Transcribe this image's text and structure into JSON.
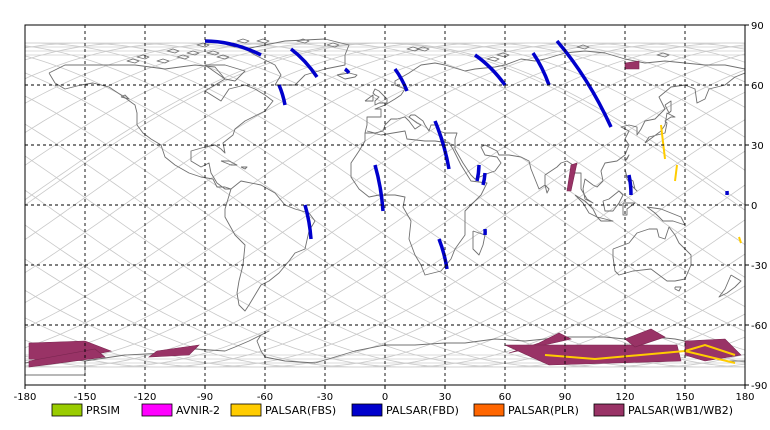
{
  "map": {
    "x_ticks": [
      "-180",
      "-150",
      "-120",
      "-90",
      "-60",
      "-30",
      "0",
      "30",
      "60",
      "90",
      "120",
      "150",
      "180"
    ],
    "y_ticks_right": [
      "90",
      "60",
      "30",
      "0",
      "-30",
      "-60",
      "-90"
    ],
    "lon_range": [
      -180,
      180
    ],
    "lat_range": [
      -90,
      90
    ],
    "grid": "dashed, every 30 degrees"
  },
  "legend": [
    {
      "label": "PRSIM",
      "color": "#99cc00"
    },
    {
      "label": "AVNIR-2",
      "color": "#ff00ff"
    },
    {
      "label": "PALSAR(FBS)",
      "color": "#ffcc00"
    },
    {
      "label": "PALSAR(FBD)",
      "color": "#0000cc"
    },
    {
      "label": "PALSAR(PLR)",
      "color": "#ff6600"
    },
    {
      "label": "PALSAR(WB1/WB2)",
      "color": "#993366"
    }
  ],
  "observations": {
    "fbd_strips": [
      [
        [
          -90,
          82
        ],
        [
          -62,
          75
        ]
      ],
      [
        [
          -47,
          78
        ],
        [
          -34,
          64
        ]
      ],
      [
        [
          -53,
          60
        ],
        [
          -50,
          50
        ]
      ],
      [
        [
          -20,
          68
        ],
        [
          -18,
          66
        ]
      ],
      [
        [
          5,
          68
        ],
        [
          11,
          57
        ]
      ],
      [
        [
          25,
          42
        ],
        [
          32,
          18
        ]
      ],
      [
        [
          -5,
          20
        ],
        [
          -1,
          -3
        ]
      ],
      [
        [
          -40,
          0
        ],
        [
          -37,
          -17
        ]
      ],
      [
        [
          45,
          75
        ],
        [
          60,
          60
        ]
      ],
      [
        [
          74,
          76
        ],
        [
          82,
          60
        ]
      ],
      [
        [
          86,
          82
        ],
        [
          113,
          39
        ]
      ],
      [
        [
          47,
          20
        ],
        [
          46,
          12
        ]
      ],
      [
        [
          122,
          15
        ],
        [
          123,
          5
        ]
      ],
      [
        [
          27,
          -17
        ],
        [
          31,
          -32
        ]
      ],
      [
        [
          50,
          16
        ],
        [
          49,
          10
        ]
      ],
      [
        [
          171,
          7
        ],
        [
          171,
          5
        ]
      ],
      [
        [
          50,
          -12
        ],
        [
          50,
          -15
        ]
      ]
    ],
    "fbs_strips": [
      [
        [
          138,
          40
        ],
        [
          140,
          23
        ]
      ],
      [
        [
          146,
          20
        ],
        [
          145,
          12
        ]
      ],
      [
        [
          177,
          -16
        ],
        [
          178,
          -19
        ]
      ]
    ],
    "wb_polygons": [
      [
        [
          -178,
          -69
        ],
        [
          -150,
          -68
        ],
        [
          -137,
          -73
        ],
        [
          -160,
          -78
        ],
        [
          -178,
          -77
        ]
      ],
      [
        [
          -178,
          -78
        ],
        [
          -145,
          -72
        ],
        [
          -140,
          -76
        ],
        [
          -178,
          -81
        ]
      ],
      [
        [
          -114,
          -73
        ],
        [
          -93,
          -70
        ],
        [
          -98,
          -75
        ],
        [
          -118,
          -76
        ]
      ],
      [
        [
          77,
          -69
        ],
        [
          87,
          -64
        ],
        [
          93,
          -67
        ],
        [
          62,
          -74
        ]
      ],
      [
        [
          60,
          -70
        ],
        [
          146,
          -70
        ],
        [
          148,
          -78
        ],
        [
          82,
          -80
        ]
      ],
      [
        [
          120,
          -67
        ],
        [
          133,
          -62
        ],
        [
          140,
          -66
        ],
        [
          125,
          -71
        ]
      ],
      [
        [
          150,
          -68
        ],
        [
          170,
          -67
        ],
        [
          178,
          -75
        ],
        [
          160,
          -78
        ],
        [
          150,
          -75
        ]
      ],
      [
        [
          120,
          71
        ],
        [
          127,
          72
        ],
        [
          127,
          68
        ],
        [
          120,
          68
        ]
      ],
      [
        [
          93,
          20
        ],
        [
          96,
          21
        ],
        [
          93,
          7
        ],
        [
          91,
          7
        ]
      ]
    ],
    "fbs_curves": [
      [
        [
          80,
          -75
        ],
        [
          105,
          -77
        ],
        [
          150,
          -73
        ],
        [
          175,
          -79
        ]
      ],
      [
        [
          150,
          -73
        ],
        [
          160,
          -70
        ],
        [
          175,
          -75
        ]
      ]
    ]
  }
}
